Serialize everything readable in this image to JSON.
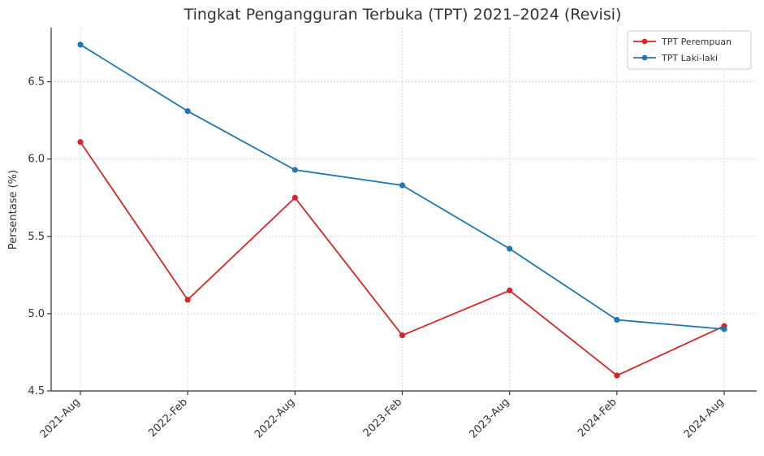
{
  "chart_data": {
    "type": "line",
    "title": "Tingkat Pengangguran Terbuka (TPT) 2021–2024 (Revisi)",
    "xlabel": "",
    "ylabel": "Persentase (%)",
    "categories": [
      "2021-Aug",
      "2022-Feb",
      "2022-Aug",
      "2023-Feb",
      "2023-Aug",
      "2024-Feb",
      "2024-Aug"
    ],
    "ylim": [
      4.5,
      6.85
    ],
    "yticks": [
      "4.5",
      "5.0",
      "5.5",
      "6.0",
      "6.5"
    ],
    "grid": true,
    "legend_position": "top-right",
    "series": [
      {
        "name": "TPT Perempuan",
        "color": "#d62728",
        "values": [
          6.11,
          5.09,
          5.75,
          4.86,
          5.15,
          4.6,
          4.92
        ]
      },
      {
        "name": "TPT Laki-laki",
        "color": "#1f77b4",
        "values": [
          6.74,
          6.31,
          5.93,
          5.83,
          5.42,
          4.96,
          4.9
        ]
      }
    ]
  }
}
